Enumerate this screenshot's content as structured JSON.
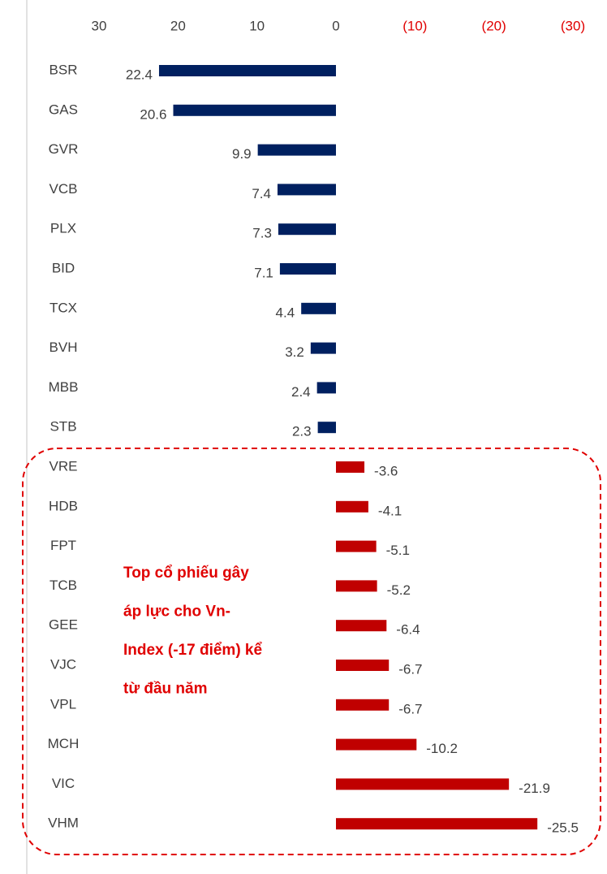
{
  "chart_data": {
    "type": "bar",
    "orientation": "horizontal",
    "categories": [
      "BSR",
      "GAS",
      "GVR",
      "VCB",
      "PLX",
      "BID",
      "TCX",
      "BVH",
      "MBB",
      "STB",
      "VRE",
      "HDB",
      "FPT",
      "TCB",
      "GEE",
      "VJC",
      "VPL",
      "MCH",
      "VIC",
      "VHM"
    ],
    "values": [
      22.4,
      20.6,
      9.9,
      7.4,
      7.3,
      7.1,
      4.4,
      3.2,
      2.4,
      2.3,
      -3.6,
      -4.1,
      -5.1,
      -5.2,
      -6.4,
      -6.7,
      -6.7,
      -10.2,
      -21.9,
      -25.5
    ],
    "positive_color": "#002060",
    "negative_color": "#c00000",
    "xlim": [
      30,
      -30
    ],
    "xticks": [
      30,
      20,
      10,
      0,
      {
        "value": -10,
        "label": "(10)"
      },
      {
        "value": -20,
        "label": "(20)"
      },
      {
        "value": -30,
        "label": "(30)"
      }
    ],
    "annotation": [
      "Top cổ phiếu gây",
      "áp lực cho Vn-",
      "Index (-17 điểm) kể",
      "từ đầu năm"
    ]
  }
}
